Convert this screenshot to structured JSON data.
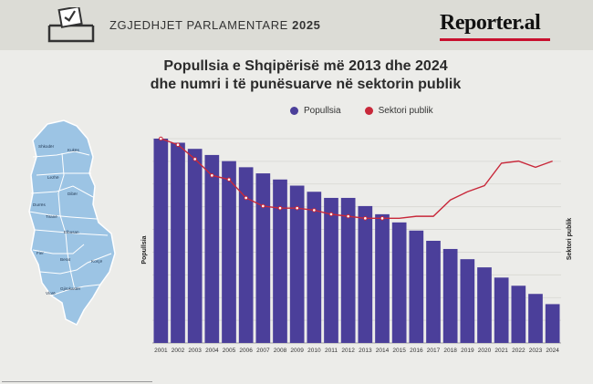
{
  "header": {
    "election_label": "ZGJEDHJET PARLAMENTARE",
    "election_year": "2025",
    "brand": "Reporter.al",
    "icon": "ballot-box-icon"
  },
  "title": {
    "line1": "Popullsia e Shqipërisë më 2013 dhe 2024",
    "line2": "dhe numri i të punësuarve në sektorin publik"
  },
  "legend": [
    {
      "label": "Popullsia",
      "color": "#4b3f9a"
    },
    {
      "label": "Sektori publik",
      "color": "#c8283a"
    }
  ],
  "map": {
    "regions": [
      "Shkodër",
      "Kukës",
      "Lezhë",
      "Dibër",
      "Durrës",
      "Tiranë",
      "Elbasan",
      "Fier",
      "Berat",
      "Korçë",
      "Gjirokastër",
      "Vlorë"
    ]
  },
  "chart_data": {
    "type": "bar",
    "title": "Popullsia e Shqipërisë më 2013 dhe 2024 dhe numri i të punësuarve në sektorin publik",
    "xlabel": "",
    "ylabel": "Popullsia",
    "y2label": "Sektori publik",
    "categories": [
      "2001",
      "2002",
      "2003",
      "2004",
      "2005",
      "2006",
      "2007",
      "2008",
      "2009",
      "2010",
      "2011",
      "2012",
      "2013",
      "2014",
      "2015",
      "2016",
      "2017",
      "2018",
      "2019",
      "2020",
      "2021",
      "2022",
      "2023",
      "2024"
    ],
    "series": [
      {
        "name": "Popullsia",
        "type": "bar",
        "color": "#4b3f9a",
        "values": [
          100,
          98,
          95,
          92,
          89,
          86,
          83,
          80,
          77,
          74,
          71,
          71,
          67,
          63,
          59,
          55,
          50,
          46,
          41,
          37,
          32,
          28,
          24,
          19
        ]
      },
      {
        "name": "Sektori publik",
        "type": "line",
        "color": "#c8283a",
        "values": [
          100,
          97,
          90,
          82,
          80,
          71,
          67,
          66,
          66,
          65,
          63,
          62,
          61,
          61,
          61,
          62,
          62,
          70,
          74,
          77,
          88,
          89,
          86,
          89
        ]
      }
    ],
    "ylim": [
      0,
      100
    ],
    "y_ticks": false,
    "grid": true,
    "legend": "top"
  }
}
